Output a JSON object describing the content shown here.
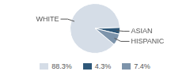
{
  "chart_data": {
    "type": "pie",
    "categories": [
      "WHITE",
      "ASIAN",
      "HISPANIC"
    ],
    "values": [
      88.3,
      4.3,
      7.4
    ],
    "value_labels": [
      "88.3%",
      "4.3%",
      "7.4%"
    ],
    "colors": [
      "#d5dde7",
      "#2f5879",
      "#7d94ab"
    ],
    "legend": "bottom"
  }
}
